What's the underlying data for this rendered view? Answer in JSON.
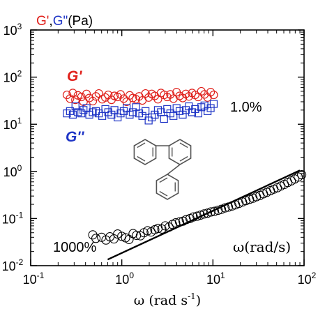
{
  "chart_data": {
    "type": "scatter",
    "x_scale": "log",
    "y_scale": "log",
    "xlim": [
      0.1,
      100
    ],
    "ylim": [
      0.01,
      1000
    ],
    "x_ticks": [
      0.1,
      1,
      10,
      100
    ],
    "y_ticks": [
      0.01,
      0.1,
      1,
      10,
      100,
      1000
    ],
    "x_tick_labels": [
      {
        "base": "10",
        "exp": "-1"
      },
      {
        "base": "10",
        "exp": "0"
      },
      {
        "base": "10",
        "exp": "1"
      },
      {
        "base": "10",
        "exp": "2"
      }
    ],
    "y_tick_labels": [
      {
        "base": "10",
        "exp": "-2"
      },
      {
        "base": "10",
        "exp": "-1"
      },
      {
        "base": "10",
        "exp": "0"
      },
      {
        "base": "10",
        "exp": "1"
      },
      {
        "base": "10",
        "exp": "2"
      },
      {
        "base": "10",
        "exp": "3"
      }
    ],
    "xlabel": {
      "main": "ω (rad s",
      "exp": "-1",
      "close": ")"
    },
    "ylabel": {
      "part1": "G'",
      "sep": ",",
      "part2": "G\"",
      "unit": "(Pa)"
    },
    "colors": {
      "gprime": "#e0201b",
      "gdouble": "#1f35c6",
      "black": "#000000",
      "molecule": "#555555"
    },
    "annotations": {
      "gprime_label": "G'",
      "gdouble_label": "G''",
      "upper_conc": "1.0%",
      "lower_conc": "1000%",
      "omega_label": "ω(rad/s)"
    },
    "series": [
      {
        "name": "G'",
        "marker": "circle",
        "color": "#e0201b",
        "x": [
          0.25,
          0.27,
          0.29,
          0.31,
          0.33,
          0.36,
          0.38,
          0.41,
          0.44,
          0.48,
          0.52,
          0.56,
          0.61,
          0.66,
          0.71,
          0.77,
          0.83,
          0.9,
          0.97,
          1.05,
          1.13,
          1.22,
          1.32,
          1.43,
          1.55,
          1.68,
          1.82,
          1.97,
          2.13,
          2.3,
          2.49,
          2.69,
          2.91,
          3.15,
          3.41,
          3.69,
          3.99,
          4.31,
          4.66,
          5.04,
          5.45,
          5.9,
          6.38,
          6.9,
          7.46,
          8.07,
          8.73,
          9.44,
          10.2
        ],
        "y": [
          42,
          35,
          46,
          33,
          41,
          38,
          30,
          44,
          36,
          31,
          39,
          45,
          34,
          37,
          42,
          33,
          40,
          38,
          43,
          35,
          30,
          41,
          36,
          34,
          39,
          32,
          45,
          37,
          44,
          40,
          34,
          46,
          42,
          38,
          43,
          35,
          48,
          40,
          36,
          44,
          39,
          46,
          42,
          38,
          50,
          43,
          37,
          48,
          42
        ]
      },
      {
        "name": "G\"",
        "marker": "square",
        "color": "#1f35c6",
        "x": [
          0.25,
          0.27,
          0.29,
          0.31,
          0.33,
          0.36,
          0.38,
          0.41,
          0.44,
          0.48,
          0.52,
          0.56,
          0.61,
          0.66,
          0.71,
          0.77,
          0.83,
          0.9,
          0.97,
          1.05,
          1.13,
          1.22,
          1.32,
          1.43,
          1.55,
          1.68,
          1.82,
          1.97,
          2.13,
          2.3,
          2.49,
          2.69,
          2.91,
          3.15,
          3.41,
          3.69,
          3.99,
          4.31,
          4.66,
          5.04,
          5.45,
          5.9,
          6.38,
          6.9,
          7.46,
          8.07,
          8.73,
          9.44,
          10.2
        ],
        "y": [
          17,
          19,
          16,
          24,
          18,
          17,
          20,
          22,
          16,
          18,
          19,
          17,
          15,
          21,
          18,
          16,
          20,
          14,
          17,
          19,
          22,
          16,
          18,
          23,
          17,
          15,
          19,
          12,
          14,
          16,
          20,
          18,
          13,
          21,
          17,
          15,
          22,
          19,
          16,
          20,
          24,
          18,
          21,
          17,
          23,
          25,
          19,
          22,
          27
        ]
      },
      {
        "name": "1000%",
        "marker": "open-circle",
        "color": "#000000",
        "x": [
          0.48,
          0.52,
          0.6,
          0.67,
          0.74,
          0.82,
          0.9,
          1.0,
          1.1,
          1.2,
          1.33,
          1.45,
          1.6,
          1.75,
          1.92,
          2.1,
          2.3,
          2.5,
          2.75,
          3.0,
          3.3,
          3.6,
          3.9,
          4.3,
          4.7,
          5.1,
          5.6,
          6.1,
          6.7,
          7.3,
          8.0,
          8.7,
          9.5,
          10.4,
          11.4,
          12.4,
          13.6,
          14.8,
          16.2,
          17.7,
          19.3,
          21.1,
          23.0,
          25.2,
          27.5,
          30.0,
          32.8,
          35.8,
          39.1,
          42.7,
          46.6,
          50.9,
          55.6,
          60.7,
          66.3,
          72.4,
          79.0,
          86.3,
          94.2
        ],
        "y": [
          0.045,
          0.038,
          0.04,
          0.035,
          0.041,
          0.037,
          0.047,
          0.042,
          0.039,
          0.036,
          0.048,
          0.044,
          0.043,
          0.05,
          0.055,
          0.052,
          0.058,
          0.062,
          0.06,
          0.07,
          0.066,
          0.075,
          0.081,
          0.085,
          0.088,
          0.095,
          0.1,
          0.108,
          0.112,
          0.118,
          0.125,
          0.13,
          0.138,
          0.142,
          0.15,
          0.157,
          0.168,
          0.175,
          0.185,
          0.195,
          0.21,
          0.225,
          0.24,
          0.255,
          0.27,
          0.29,
          0.31,
          0.335,
          0.36,
          0.39,
          0.42,
          0.45,
          0.49,
          0.53,
          0.58,
          0.63,
          0.69,
          0.76,
          0.85
        ]
      }
    ],
    "fit_line": {
      "x": [
        0.7,
        90
      ],
      "y": [
        0.0135,
        1.05
      ]
    }
  }
}
